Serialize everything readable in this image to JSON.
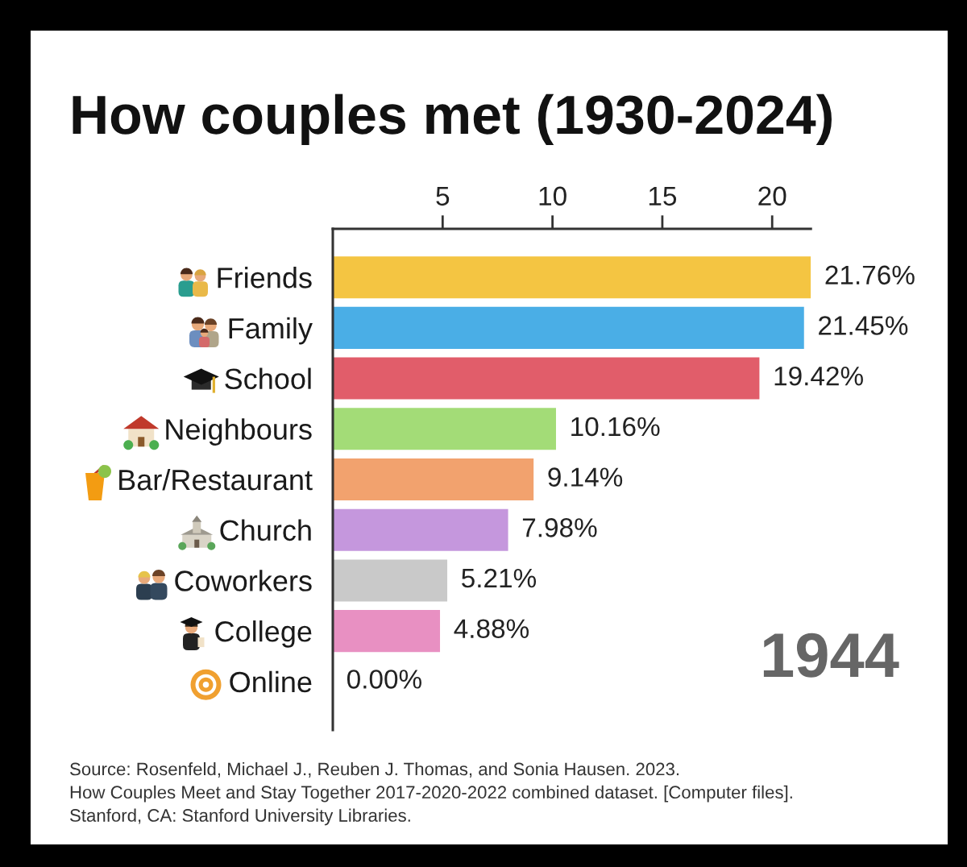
{
  "chart_data": {
    "type": "bar",
    "orientation": "horizontal",
    "title": "How couples met (1930-2024)",
    "categories": [
      "Friends",
      "Family",
      "School",
      "Neighbours",
      "Bar/Restaurant",
      "Church",
      "Coworkers",
      "College",
      "Online"
    ],
    "values": [
      21.76,
      21.45,
      19.42,
      10.16,
      9.14,
      7.98,
      5.21,
      4.88,
      0.0
    ],
    "colors": [
      "#f4c542",
      "#4aaee6",
      "#e15d6a",
      "#a3dc77",
      "#f2a26e",
      "#c597dd",
      "#c9c9c9",
      "#e890c2",
      "#f0a030"
    ],
    "value_labels": [
      "21.76%",
      "21.45%",
      "19.42%",
      "10.16%",
      "9.14%",
      "7.98%",
      "5.21%",
      "4.88%",
      "0.00%"
    ],
    "xlim": [
      0,
      21.76
    ],
    "xticks": [
      5,
      10,
      15,
      20
    ],
    "annotations": [
      "1944",
      "Source: Rosenfeld, Michael J., Reuben J. Thomas, and Sonia Hausen. 2023.\nHow Couples Meet and Stay Together 2017-2020-2022 combined dataset. [Computer files].\nStanford, CA: Stanford University Libraries."
    ]
  }
}
